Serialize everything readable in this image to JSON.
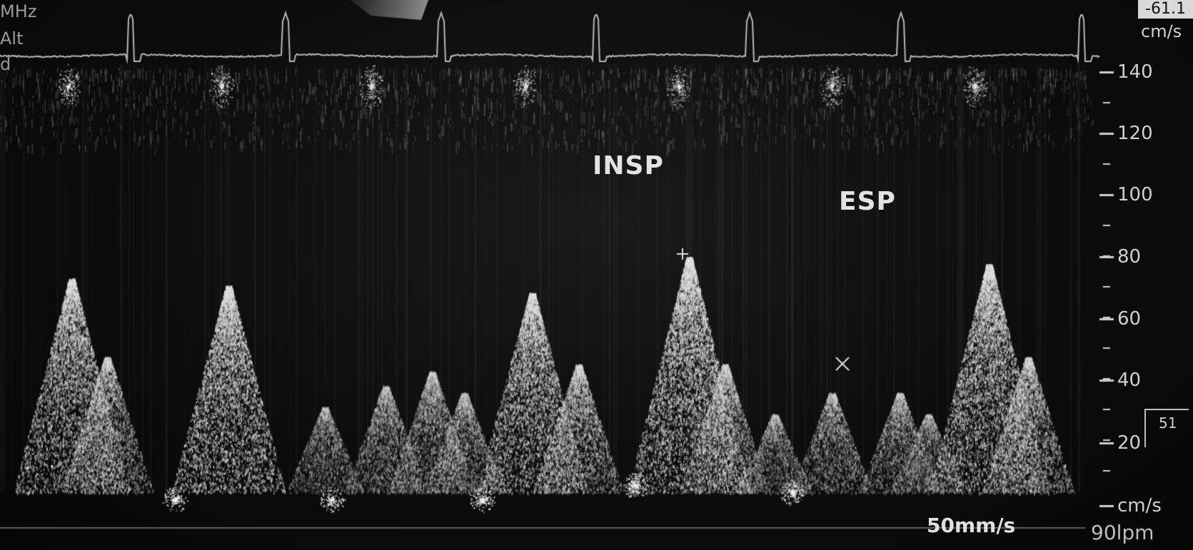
{
  "overlay": {
    "freq_unit": "MHz",
    "alt_label": "Alt",
    "d_label": "d",
    "top_right_value": "-61.1",
    "top_unit": "cm/s"
  },
  "annotations": {
    "insp": "INSP",
    "esp": "ESP"
  },
  "velocity_scale": {
    "ticks": [
      "140",
      "120",
      "100",
      "80",
      "60",
      "40",
      "20"
    ],
    "bottom_unit": "cm/s",
    "inset_value": "51"
  },
  "footer": {
    "sweep_speed": "50mm/s",
    "heart_rate": "90lpm"
  },
  "colors": {
    "spectrum": "#d8d8d8",
    "ecg_trace": "#bbbbbb",
    "background": "#0b0b0b"
  }
}
